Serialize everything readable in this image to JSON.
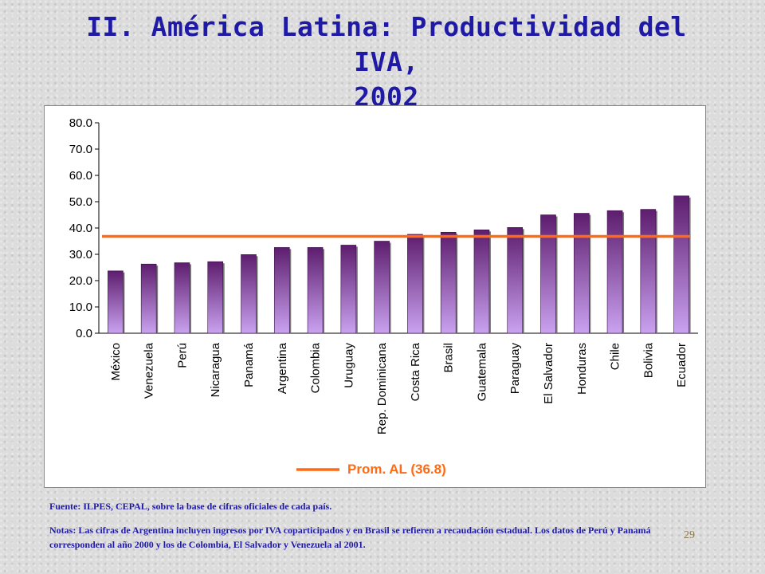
{
  "slide": {
    "title_line1": "II. América Latina: Productividad del IVA,",
    "title_line2": "2002",
    "source": "Fuente: ILPES, CEPAL, sobre la base de cifras oficiales de cada país.",
    "notes": "Notas: Las cifras de Argentina incluyen ingresos por IVA coparticipados y en Brasil se refieren a recaudación estadual. Los datos de Perú y Panamá corresponden al año 2000 y los de Colombia, El Salvador y Venezuela al 2001.",
    "page_number": "29"
  },
  "colors": {
    "title": "#1f1aa6",
    "bar_top": "#5e1d6e",
    "bar_bottom": "#c9a2f0",
    "average_line": "#ff6a13",
    "legend_text": "#ff6a13"
  },
  "chart_data": {
    "type": "bar",
    "categories": [
      "México",
      "Venezuela",
      "Perú",
      "Nicaragua",
      "Panamá",
      "Argentina",
      "Colombia",
      "Uruguay",
      "Rep. Dominicana",
      "Costa Rica",
      "Brasil",
      "Guatemala",
      "Paraguay",
      "El Salvador",
      "Honduras",
      "Chile",
      "Bolivia",
      "Ecuador"
    ],
    "values": [
      23.7,
      26.3,
      26.8,
      27.2,
      29.9,
      32.6,
      32.6,
      33.5,
      35.0,
      37.6,
      38.4,
      39.3,
      40.2,
      45.0,
      45.6,
      46.6,
      47.1,
      52.2
    ],
    "ylim": [
      0,
      80
    ],
    "yticks": [
      "0.0",
      "10.0",
      "20.0",
      "30.0",
      "40.0",
      "50.0",
      "60.0",
      "70.0",
      "80.0"
    ],
    "reference_line": {
      "label": "Prom. AL (36.8)",
      "value": 36.8
    },
    "legend_position": "bottom-center",
    "grid": false
  }
}
